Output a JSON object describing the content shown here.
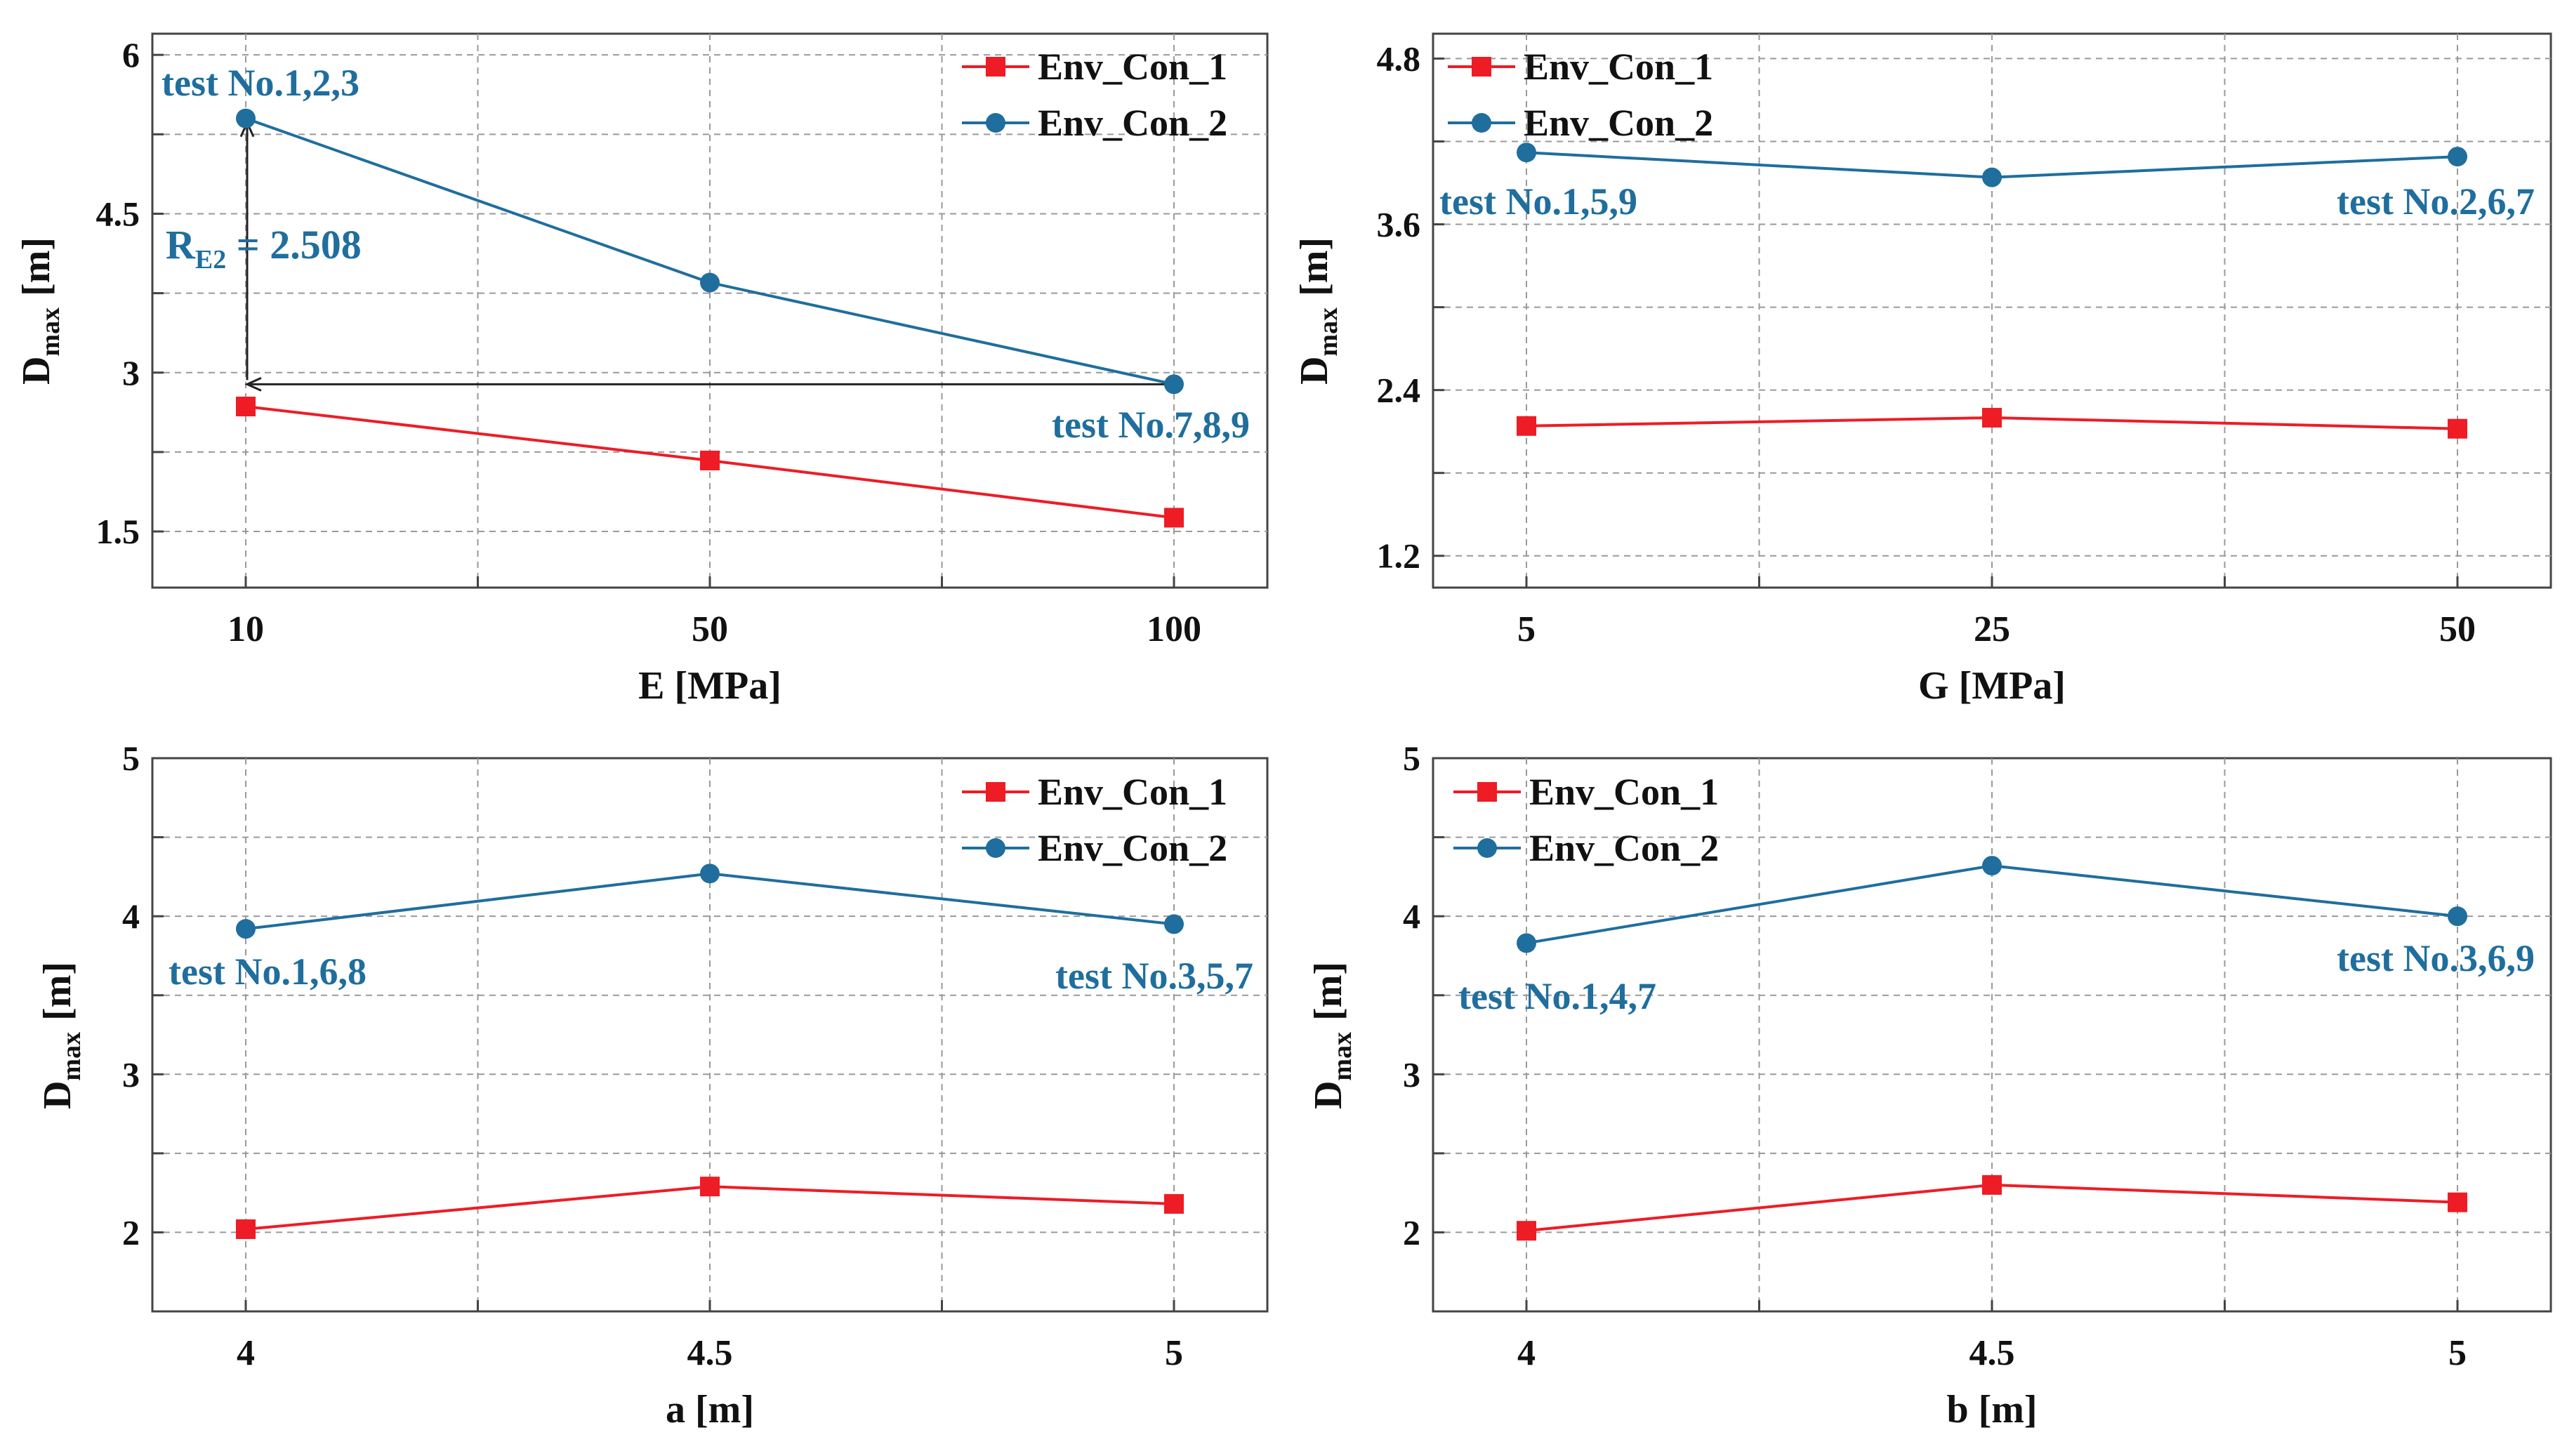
{
  "colors": {
    "series1": "#ee1c25",
    "series2": "#1f6e9e",
    "annotation": "#1f6e9e",
    "axis": "#444444",
    "grid": "#9a9a9a"
  },
  "chart_data": [
    {
      "type": "line",
      "xlabel": "E [MPa]",
      "ylabel_main": "D",
      "ylabel_sub": "max",
      "ylabel_unit": "[m]",
      "categories": [
        "10",
        "50",
        "100"
      ],
      "yticks": [
        "1.5",
        "3",
        "4.5",
        "6"
      ],
      "ytick_values": [
        1.5,
        3,
        4.5,
        6
      ],
      "ylim": [
        0.97,
        6.2
      ],
      "series": [
        {
          "name": "Env_Con_1",
          "values": [
            2.68,
            2.17,
            1.63
          ],
          "marker": "square"
        },
        {
          "name": "Env_Con_2",
          "values": [
            5.4,
            3.85,
            2.89
          ],
          "marker": "circle"
        }
      ],
      "legend": "top-right",
      "annotations": [
        {
          "text": "test No.1,2,3",
          "x_index": 0
        },
        {
          "text": "test No.7,8,9",
          "x_index": 2
        }
      ],
      "range_label": {
        "main": "R",
        "sub": "E2",
        "value": " = 2.508"
      }
    },
    {
      "type": "line",
      "xlabel": "G [MPa]",
      "ylabel_main": "D",
      "ylabel_sub": "max",
      "ylabel_unit": "[m]",
      "categories": [
        "5",
        "25",
        "50"
      ],
      "yticks": [
        "1.2",
        "2.4",
        "3.6",
        "4.8"
      ],
      "ytick_values": [
        1.2,
        2.4,
        3.6,
        4.8
      ],
      "ylim": [
        0.97,
        4.98
      ],
      "series": [
        {
          "name": "Env_Con_1",
          "values": [
            2.14,
            2.2,
            2.12
          ],
          "marker": "square"
        },
        {
          "name": "Env_Con_2",
          "values": [
            4.12,
            3.94,
            4.09
          ],
          "marker": "circle"
        }
      ],
      "legend": "top-left",
      "annotations": [
        {
          "text": "test No.1,5,9",
          "x_index": 0
        },
        {
          "text": "test No.2,6,7",
          "x_index": 2
        }
      ]
    },
    {
      "type": "line",
      "xlabel": "a [m]",
      "ylabel_main": "D",
      "ylabel_sub": "max",
      "ylabel_unit": "[m]",
      "categories": [
        "4",
        "4.5",
        "5"
      ],
      "yticks": [
        "2",
        "3",
        "4",
        "5"
      ],
      "ytick_values": [
        2,
        3,
        4,
        5
      ],
      "ylim": [
        1.5,
        5
      ],
      "series": [
        {
          "name": "Env_Con_1",
          "values": [
            2.02,
            2.29,
            2.18
          ],
          "marker": "square"
        },
        {
          "name": "Env_Con_2",
          "values": [
            3.92,
            4.27,
            3.95
          ],
          "marker": "circle"
        }
      ],
      "legend": "top-right",
      "annotations": [
        {
          "text": "test No.1,6,8",
          "x_index": 0
        },
        {
          "text": "test No.3,5,7",
          "x_index": 2
        }
      ]
    },
    {
      "type": "line",
      "xlabel": "b [m]",
      "ylabel_main": "D",
      "ylabel_sub": "max",
      "ylabel_unit": "[m]",
      "categories": [
        "4",
        "4.5",
        "5"
      ],
      "yticks": [
        "2",
        "3",
        "4",
        "5"
      ],
      "ytick_values": [
        2,
        3,
        4,
        5
      ],
      "ylim": [
        1.5,
        5
      ],
      "series": [
        {
          "name": "Env_Con_1",
          "values": [
            2.01,
            2.3,
            2.19
          ],
          "marker": "square"
        },
        {
          "name": "Env_Con_2",
          "values": [
            3.83,
            4.32,
            4.0
          ],
          "marker": "circle"
        }
      ],
      "legend": "top-left",
      "annotations": [
        {
          "text": "test No.1,4,7",
          "x_index": 0
        },
        {
          "text": "test No.3,6,9",
          "x_index": 2
        }
      ]
    }
  ]
}
